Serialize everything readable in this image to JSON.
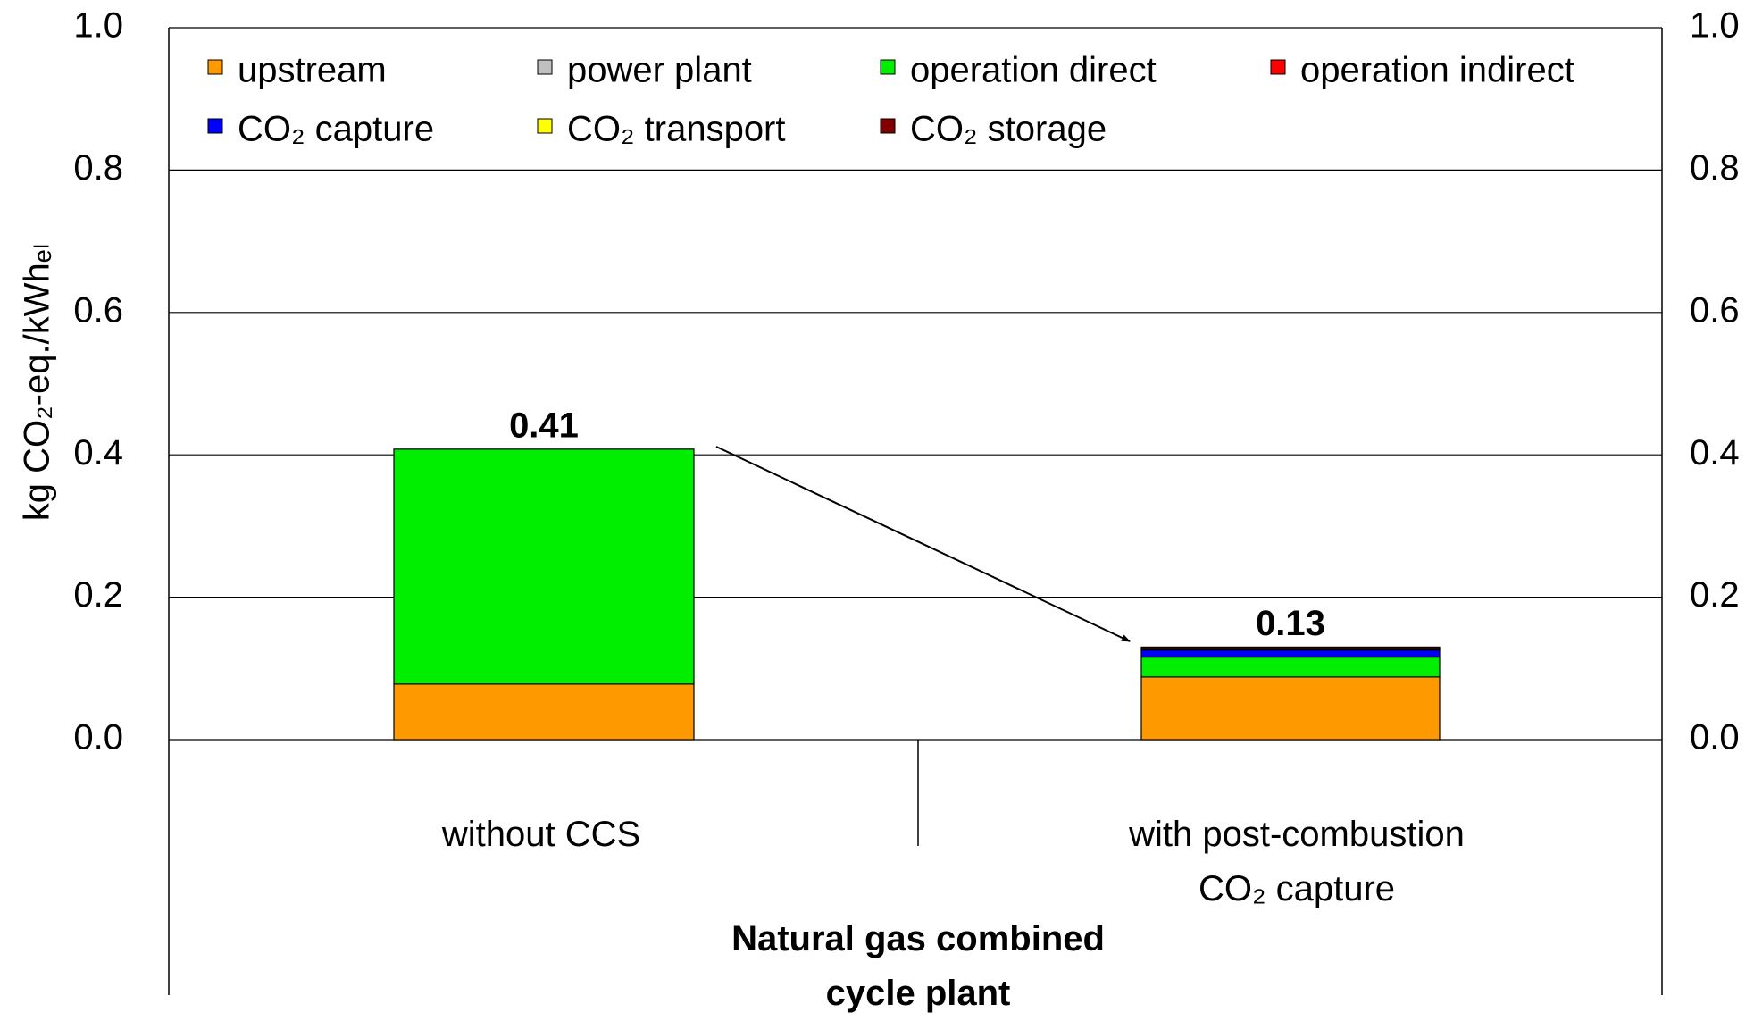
{
  "chart_data": {
    "type": "stacked_bar",
    "y_label": "kg CO₂-eq./kWhₑₗ",
    "x_label": "Natural gas combined cycle plant",
    "categories": [
      "without CCS",
      "with post-combustion CO₂ capture"
    ],
    "series": [
      {
        "name": "upstream",
        "color": "#ff9900",
        "values": [
          0.078,
          0.088
        ]
      },
      {
        "name": "power plant",
        "color": "#c0c0c0",
        "values": [
          0,
          0
        ]
      },
      {
        "name": "operation direct",
        "color": "#00ee00",
        "values": [
          0.33,
          0.028
        ]
      },
      {
        "name": "operation indirect",
        "color": "#ff0000",
        "values": [
          0,
          0
        ]
      },
      {
        "name": "CO₂ capture",
        "color": "#0000ff",
        "values": [
          0,
          0.01
        ]
      },
      {
        "name": "CO₂ transport",
        "color": "#ffff00",
        "values": [
          0,
          0.002
        ]
      },
      {
        "name": "CO₂ storage",
        "color": "#800000",
        "values": [
          0,
          0.002
        ]
      }
    ],
    "total_labels": [
      "0.41",
      "0.13"
    ],
    "ylim": [
      0,
      1
    ],
    "yticks": [
      {
        "value": 0,
        "label": "0.0"
      },
      0.2,
      0.4,
      0.6,
      0.8,
      {
        "value": 1,
        "label": "1.0"
      }
    ],
    "grid": true,
    "legend": "top-left"
  }
}
